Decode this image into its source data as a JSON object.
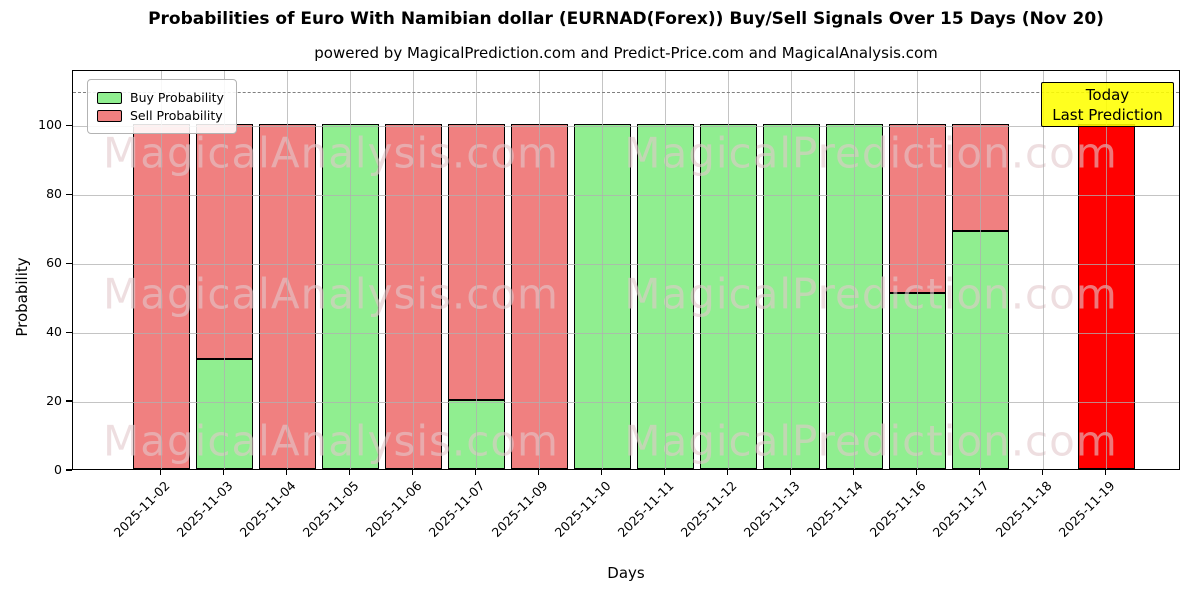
{
  "chart_data": {
    "type": "bar",
    "stacked": true,
    "title": "Probabilities of Euro With Namibian dollar (EURNAD(Forex)) Buy/Sell Signals Over 15 Days (Nov 20)",
    "subtitle": "powered by MagicalPrediction.com and Predict-Price.com and MagicalAnalysis.com",
    "xlabel": "Days",
    "ylabel": "Probability",
    "categories": [
      "2025-11-02",
      "2025-11-03",
      "2025-11-04",
      "2025-11-05",
      "2025-11-06",
      "2025-11-07",
      "2025-11-09",
      "2025-11-10",
      "2025-11-11",
      "2025-11-12",
      "2025-11-13",
      "2025-11-14",
      "2025-11-16",
      "2025-11-17",
      "2025-11-18",
      "2025-11-19"
    ],
    "series": [
      {
        "name": "Buy Probability",
        "color": "#90ee90",
        "values": [
          0,
          32,
          0,
          100,
          0,
          20,
          0,
          100,
          100,
          100,
          100,
          100,
          51,
          69,
          0,
          0
        ]
      },
      {
        "name": "Sell Probability",
        "color": "#f08080",
        "values": [
          100,
          68,
          100,
          0,
          100,
          80,
          100,
          0,
          0,
          0,
          0,
          0,
          49,
          31,
          0,
          0
        ]
      }
    ],
    "today_bar": {
      "category": "2025-11-19",
      "value": 100,
      "color": "#ff0000"
    },
    "annotation": {
      "lines": [
        "Today",
        "Last Prediction"
      ],
      "bg": "#ffff00"
    },
    "yticks": [
      0,
      20,
      40,
      60,
      80,
      100
    ],
    "ylim": [
      0,
      116
    ],
    "dashed_line_y": 110,
    "grid": true,
    "legend_position": "upper-left",
    "watermarks": [
      "MagicalAnalysis.com",
      "MagicalPrediction.com"
    ],
    "colors": {
      "grid": "#b0b0b0",
      "dashed_line": "#7f7f7f",
      "bar_edge": "#000000",
      "annotation_bg": "#ffff00",
      "today_bar": "#ff0000"
    }
  }
}
